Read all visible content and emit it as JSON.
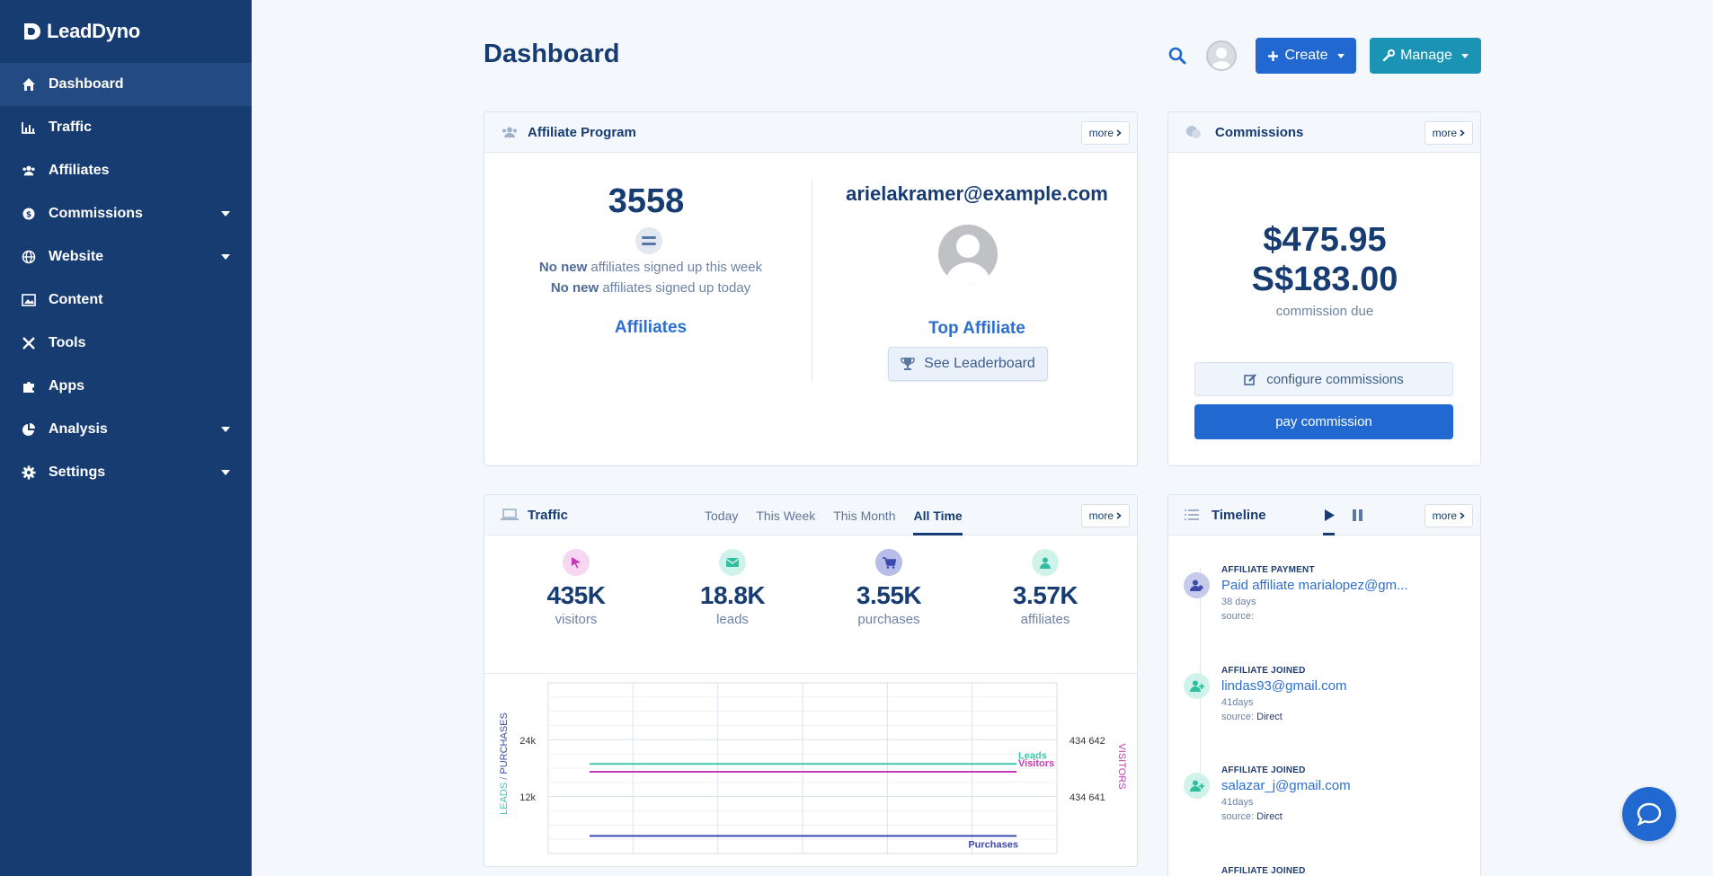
{
  "app": {
    "name": "LeadDyno"
  },
  "sidebar": {
    "items": [
      {
        "label": "Dashboard",
        "icon": "home-icon",
        "active": true,
        "has_caret": false
      },
      {
        "label": "Traffic",
        "icon": "bar-chart-icon",
        "has_caret": false
      },
      {
        "label": "Affiliates",
        "icon": "users-icon",
        "has_caret": false
      },
      {
        "label": "Commissions",
        "icon": "coins-icon",
        "has_caret": true
      },
      {
        "label": "Website",
        "icon": "globe-icon",
        "has_caret": true
      },
      {
        "label": "Content",
        "icon": "image-icon",
        "has_caret": false
      },
      {
        "label": "Tools",
        "icon": "tools-icon",
        "has_caret": false
      },
      {
        "label": "Apps",
        "icon": "puzzle-icon",
        "has_caret": false
      },
      {
        "label": "Analysis",
        "icon": "pie-chart-icon",
        "has_caret": true
      },
      {
        "label": "Settings",
        "icon": "gear-icon",
        "has_caret": true
      }
    ]
  },
  "header": {
    "title": "Dashboard",
    "create_label": "Create",
    "manage_label": "Manage"
  },
  "affiliate_program": {
    "title": "Affiliate Program",
    "more_label": "more",
    "count": "3558",
    "week_bold": "No new",
    "week_rest": " affiliates signed up this week",
    "today_bold": "No new",
    "today_rest": " affiliates signed up today",
    "link_label": "Affiliates",
    "top_email": "arielakramer@example.com",
    "top_label": "Top Affiliate",
    "leaderboard_label": "See Leaderboard"
  },
  "commissions": {
    "title": "Commissions",
    "more_label": "more",
    "amount_1": "$475.95",
    "amount_2": "S$183.00",
    "due_label": "commission due",
    "configure_label": "configure commissions",
    "pay_label": "pay commission"
  },
  "traffic": {
    "title": "Traffic",
    "more_label": "more",
    "tabs": [
      "Today",
      "This Week",
      "This Month",
      "All Time"
    ],
    "active_tab": "All Time",
    "metrics": [
      {
        "value": "435K",
        "label": "visitors",
        "icon": "cursor-icon",
        "color": "#e28ad6"
      },
      {
        "value": "18.8K",
        "label": "leads",
        "icon": "envelope-icon",
        "color": "#3cc9ad"
      },
      {
        "value": "3.55K",
        "label": "purchases",
        "icon": "cart-icon",
        "color": "#4854b8"
      },
      {
        "value": "3.57K",
        "label": "affiliates",
        "icon": "user-icon",
        "color": "#3cc9ad"
      }
    ]
  },
  "chart_data": {
    "type": "line",
    "y_left_label_part1": "LEADS",
    "y_left_label_sep": " / ",
    "y_left_label_part2": "PURCHASES",
    "y_right_label": "VISITORS",
    "y_left_ticks": [
      "24k",
      "12k"
    ],
    "y_right_ticks": [
      "434 642",
      "434 641"
    ],
    "series": [
      {
        "name": "Leads",
        "color": "#3cc9ad",
        "axis": "left",
        "values": [
          18800,
          18800,
          18800,
          18800,
          18800,
          18800,
          18800
        ]
      },
      {
        "name": "Visitors",
        "color": "#c53bb5",
        "axis": "right",
        "values": [
          434641,
          434641,
          434641,
          434641,
          434641,
          434641,
          434641
        ]
      },
      {
        "name": "Purchases",
        "color": "#3d4aad",
        "axis": "left",
        "values": [
          3550,
          3550,
          3550,
          3550,
          3550,
          3550,
          3550
        ]
      }
    ],
    "grid": true
  },
  "timeline": {
    "title": "Timeline",
    "more_label": "more",
    "items": [
      {
        "type": "AFFILIATE PAYMENT",
        "title": "Paid affiliate marialopez@gm...",
        "age": "38 days",
        "source_label": "source:",
        "source": "",
        "icon": "user-payment-icon",
        "color": "#5563c1"
      },
      {
        "type": "AFFILIATE JOINED",
        "title": "lindas93@gmail.com",
        "age": "41days",
        "source_label": "source:",
        "source": "Direct",
        "icon": "user-plus-icon",
        "color": "#3cc9ad"
      },
      {
        "type": "AFFILIATE JOINED",
        "title": "salazar_j@gmail.com",
        "age": "41days",
        "source_label": "source:",
        "source": "Direct",
        "icon": "user-plus-icon",
        "color": "#3cc9ad"
      },
      {
        "type": "AFFILIATE JOINED",
        "title": "",
        "age": "",
        "source_label": "",
        "source": "",
        "icon": "user-plus-icon",
        "color": "#3cc9ad"
      }
    ]
  }
}
